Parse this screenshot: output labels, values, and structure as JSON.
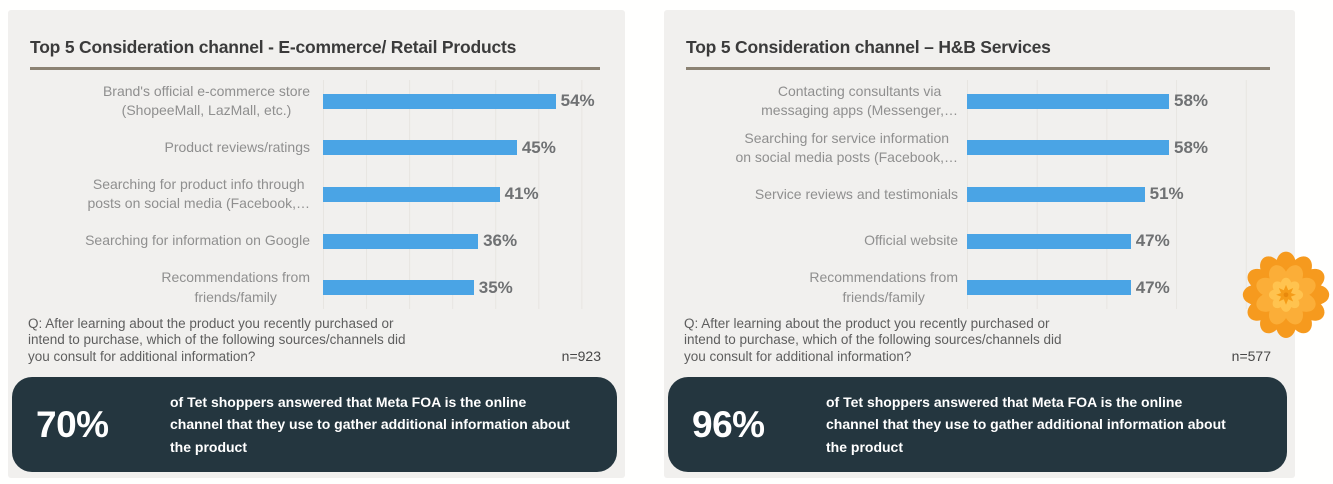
{
  "colors": {
    "page_bg": "#ffffff",
    "panel_bg": "#f1f0ee",
    "title_text": "#3b3b3b",
    "title_rule": "#8b8273",
    "bar_blue": "#4aa4e5",
    "label_gray": "#8f8f8f",
    "highlight_box_bg": "#24363f",
    "flower_orange": "#f69a1e"
  },
  "panels": [
    {
      "title": "Top 5 Consideration channel - E-commerce/ Retail Products",
      "question": "Q: After learning about the product you recently purchased or\nintend to purchase, which of the following sources/channels did\nyou consult for additional information?",
      "sample": "n=923",
      "highlight": {
        "value": "70%",
        "text": "of Tet shoppers answered that Meta FOA is the online\nchannel that they use to gather additional information about\nthe product"
      }
    },
    {
      "title": "Top 5 Consideration channel – H&B Services",
      "question": "Q: After learning about the product you recently purchased or\nintend to purchase, which of the following sources/channels did\nyou consult for additional information?",
      "sample": "n=577",
      "highlight": {
        "value": "96%",
        "text": "of Tet shoppers answered that Meta FOA is the online\nchannel that they use to gather additional information about\nthe product"
      }
    }
  ],
  "chart_data": [
    {
      "type": "bar",
      "orientation": "horizontal",
      "title": "Top 5 Consideration channel - E-commerce/ Retail Products",
      "categories": [
        "Brand's official e-commerce store\n(ShopeeMall, LazMall, etc.)",
        "Product reviews/ratings",
        "Searching for product info through\nposts on social media (Facebook,…",
        "Searching for information on Google",
        "Recommendations from\nfriends/family"
      ],
      "values": [
        54,
        45,
        41,
        36,
        35
      ],
      "unit": "%",
      "xlim": [
        0,
        65
      ],
      "grid": true,
      "legend": false,
      "bar_color": "#4aa4e5",
      "annotations": [
        "n=923"
      ]
    },
    {
      "type": "bar",
      "orientation": "horizontal",
      "title": "Top 5 Consideration channel – H&B Services",
      "categories": [
        "Contacting consultants via\nmessaging apps (Messenger,…",
        "Searching for service information\non social media posts (Facebook,…",
        "Service reviews and testimonials",
        "Official website",
        "Recommendations from\nfriends/family"
      ],
      "values": [
        58,
        58,
        51,
        47,
        47
      ],
      "unit": "%",
      "xlim": [
        0,
        87
      ],
      "grid": true,
      "legend": false,
      "bar_color": "#4aa4e5",
      "annotations": [
        "n=577"
      ]
    }
  ]
}
